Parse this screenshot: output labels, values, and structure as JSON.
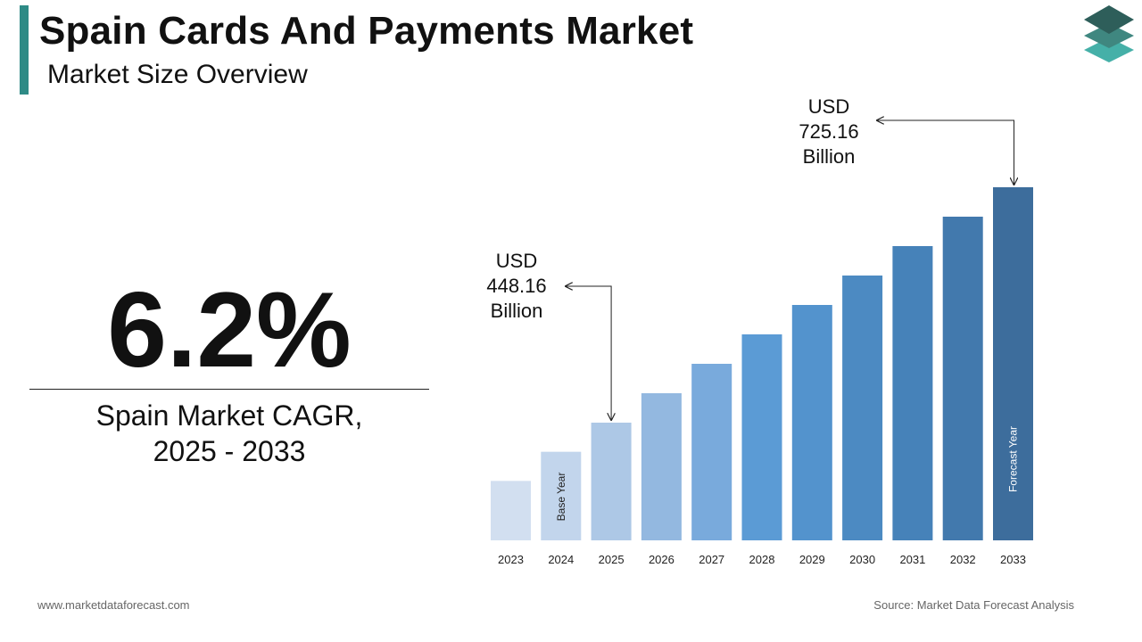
{
  "header": {
    "title": "Spain Cards And Payments Market",
    "subtitle": "Market Size Overview"
  },
  "cagr": {
    "value": "6.2%",
    "label_line1": "Spain Market CAGR,",
    "label_line2": "2025 - 2033"
  },
  "footer": {
    "website": "www.marketdataforecast.com",
    "source": "Source: Market Data Forecast Analysis"
  },
  "logo_icon": "stacked-layers-icon",
  "colors": {
    "accent": "#2e8b86",
    "logo_top": "#2e5e5a",
    "logo_mid": "#3f8780",
    "logo_bottom": "#45b0a8",
    "bars": [
      "#d2dff0",
      "#c2d5ec",
      "#adc8e6",
      "#93b8e0",
      "#79aadc",
      "#5b9bd5",
      "#5393cd",
      "#4c8ac2",
      "#4682b9",
      "#4279ad",
      "#3d6d9c",
      "#39648d"
    ]
  },
  "chart_data": {
    "type": "bar",
    "categories": [
      "2023",
      "2024",
      "2025",
      "2026",
      "2027",
      "2028",
      "2029",
      "2030",
      "2031",
      "2032",
      "2033"
    ],
    "values": [
      200,
      298,
      396,
      495,
      594,
      693,
      792,
      891,
      990,
      1089,
      1188
    ],
    "bar_labels": {
      "2024": "Base Year",
      "2033": "Forecast Year"
    },
    "annotations": [
      {
        "year": "2025",
        "line1": "USD",
        "line2": "448.16",
        "line3": "Billion"
      },
      {
        "year": "2033",
        "line1": "USD",
        "line2": "725.16",
        "line3": "Billion"
      }
    ],
    "ylim": [
      0,
      1200
    ],
    "grid": false,
    "legend": "none"
  }
}
